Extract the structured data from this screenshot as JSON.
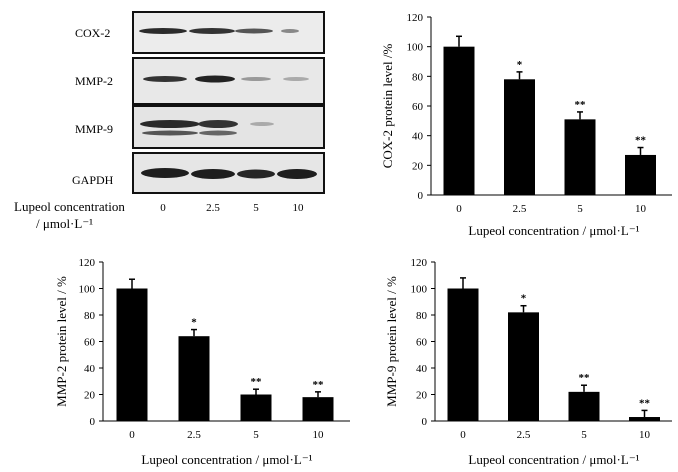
{
  "western_blot": {
    "proteins": [
      "COX-2",
      "MMP-2",
      "MMP-9",
      "GAPDH"
    ],
    "x_label_line1": "Lupeol concentration",
    "x_label_line2": "/ μmol·L⁻¹",
    "lanes": [
      "0",
      "2.5",
      "5",
      "10"
    ]
  },
  "chart_data": [
    {
      "type": "bar",
      "title": "",
      "categories": [
        "0",
        "2.5",
        "5",
        "10"
      ],
      "values": [
        100,
        78,
        51,
        27
      ],
      "errors": [
        7,
        5,
        5,
        5
      ],
      "significance": [
        "",
        "*",
        "**",
        "**"
      ],
      "xlabel": "Lupeol concentration / μmol·L⁻¹",
      "ylabel": "COX-2 protein level /%",
      "ylim": [
        0,
        120
      ],
      "yticks": [
        "0",
        "20",
        "40",
        "60",
        "80",
        "100",
        "120"
      ],
      "color": "#000000"
    },
    {
      "type": "bar",
      "title": "",
      "categories": [
        "0",
        "2.5",
        "5",
        "10"
      ],
      "values": [
        100,
        64,
        20,
        18
      ],
      "errors": [
        7,
        5,
        4,
        4
      ],
      "significance": [
        "",
        "*",
        "**",
        "**"
      ],
      "xlabel": "Lupeol concentration / μmol·L⁻¹",
      "ylabel": "MMP-2 protein level / %",
      "ylim": [
        0,
        120
      ],
      "yticks": [
        "0",
        "20",
        "40",
        "60",
        "80",
        "100",
        "120"
      ],
      "color": "#000000"
    },
    {
      "type": "bar",
      "title": "",
      "categories": [
        "0",
        "2.5",
        "5",
        "10"
      ],
      "values": [
        100,
        82,
        22,
        3
      ],
      "errors": [
        8,
        5,
        5,
        5
      ],
      "significance": [
        "",
        "*",
        "**",
        "**"
      ],
      "xlabel": "Lupeol concentration / μmol·L⁻¹",
      "ylabel": "MMP-9 protein level / %",
      "ylim": [
        0,
        120
      ],
      "yticks": [
        "0",
        "20",
        "40",
        "60",
        "80",
        "100",
        "120"
      ],
      "color": "#000000"
    }
  ]
}
